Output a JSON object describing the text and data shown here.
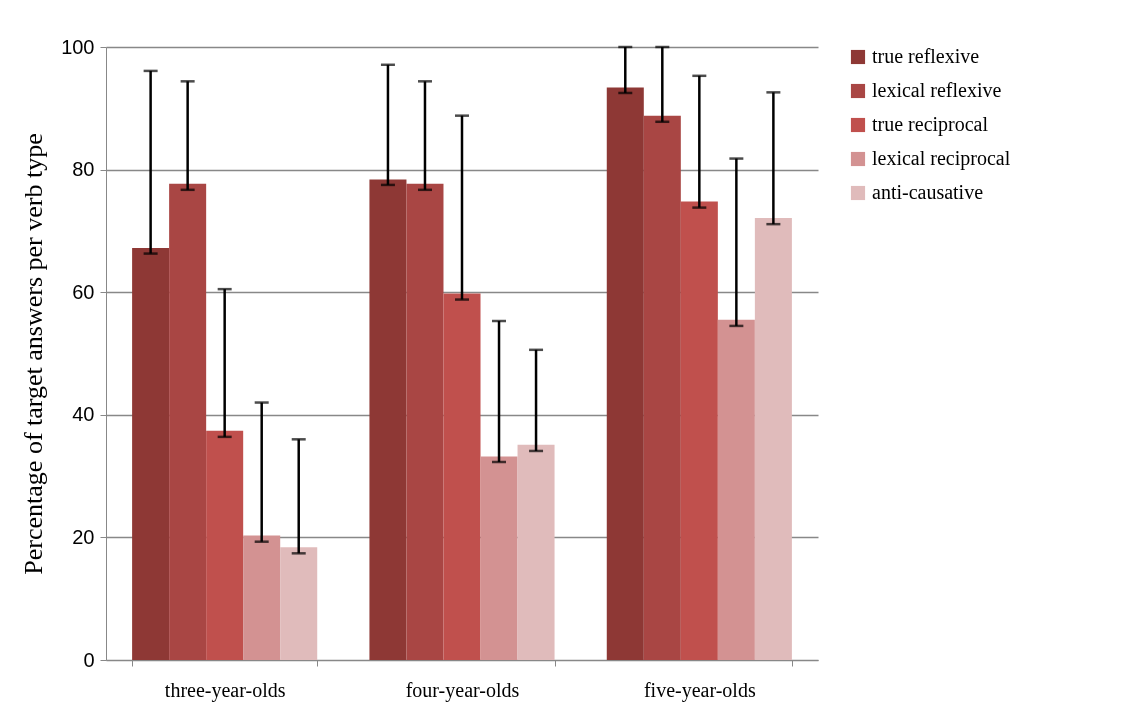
{
  "chart_data": {
    "type": "bar",
    "ylabel": "Percentage of target answers per verb type",
    "categories": [
      "three-year-olds",
      "four-year-olds",
      "five-year-olds"
    ],
    "series": [
      {
        "name": "true reflexive",
        "color": "#8e3835",
        "values": [
          67.2,
          78.4,
          93.4
        ],
        "errors": [
          [
            66.3,
            96.1
          ],
          [
            77.5,
            97.1
          ],
          [
            92.5,
            100
          ]
        ]
      },
      {
        "name": "lexical reflexive",
        "color": "#a94644",
        "values": [
          77.7,
          77.7,
          88.8
        ],
        "errors": [
          [
            76.7,
            94.4
          ],
          [
            76.7,
            94.4
          ],
          [
            87.8,
            100
          ]
        ]
      },
      {
        "name": "true reciprocal",
        "color": "#c0504d",
        "values": [
          37.4,
          59.8,
          74.8
        ],
        "errors": [
          [
            36.4,
            60.5
          ],
          [
            58.8,
            88.8
          ],
          [
            73.8,
            95.3
          ]
        ]
      },
      {
        "name": "lexical reciprocal",
        "color": "#d39292",
        "values": [
          20.3,
          33.2,
          55.5
        ],
        "errors": [
          [
            19.3,
            42.0
          ],
          [
            32.3,
            55.3
          ],
          [
            54.5,
            81.8
          ]
        ]
      },
      {
        "name": "anti-causative",
        "color": "#e0bbbb",
        "values": [
          18.4,
          35.1,
          72.1
        ],
        "errors": [
          [
            17.4,
            36.0
          ],
          [
            34.1,
            50.6
          ],
          [
            71.1,
            92.6
          ]
        ]
      }
    ],
    "ylim": [
      0,
      100
    ],
    "yticks": [
      0,
      20,
      40,
      60,
      80,
      100
    ],
    "grid": "y",
    "legend": "right"
  }
}
